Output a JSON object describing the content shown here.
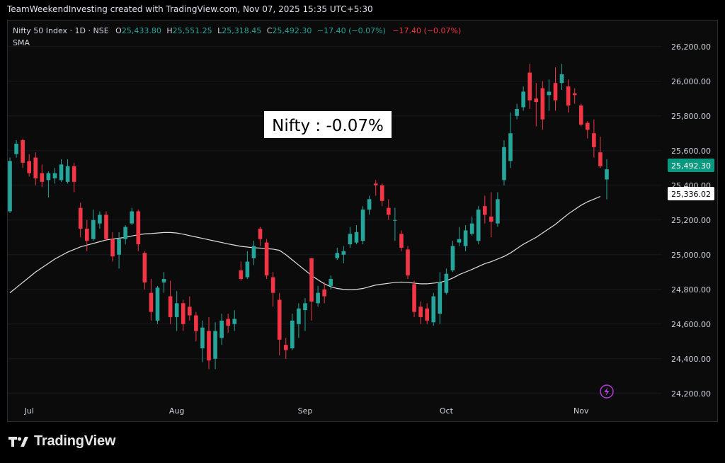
{
  "header": {
    "credit": "TeamWeekendInvesting created with TradingView.com, Nov 07, 2025 15:35 UTC+5:30"
  },
  "legend": {
    "symbol": "Nifty 50 Index · 1D · NSE",
    "o_label": "O",
    "o_value": "25,433.80",
    "h_label": "H",
    "h_value": "25,551.25",
    "l_label": "L",
    "l_value": "25,318.45",
    "c_label": "C",
    "c_value": "25,492.30",
    "change": "−17.40 (−0.07%)",
    "change2": "−17.40 (−0.07%)",
    "sma_label": "SMA"
  },
  "annotation": {
    "text": "Nifty : -0.07%"
  },
  "price_tags": {
    "last": "25,492.30",
    "sma": "25,336.02"
  },
  "brand": {
    "name": "TradingView"
  },
  "colors": {
    "up": "#26a69a",
    "down": "#f23645",
    "sma": "#e0e0e0",
    "text": "#d1d4dc",
    "bg": "#0b0b0b",
    "last_tag": "#089981",
    "flash": "#b23bd8"
  },
  "chart_data": {
    "type": "candlestick",
    "y_axis": {
      "range": [
        24150,
        26350
      ],
      "ticks": [
        24200,
        24400,
        24600,
        24800,
        25000,
        25200,
        25400,
        25600,
        25800,
        26000,
        26200
      ],
      "tick_labels": [
        "24,200.00",
        "24,400.00",
        "24,600.00",
        "24,800.00",
        "25,000.00",
        "25,200.00",
        "25,400.00",
        "25,600.00",
        "25,800.00",
        "26,000.00",
        "26,200.00"
      ]
    },
    "x_axis": {
      "labels": [
        {
          "label": "Jul",
          "index": 3
        },
        {
          "label": "Aug",
          "index": 26
        },
        {
          "label": "Sep",
          "index": 46
        },
        {
          "label": "Oct",
          "index": 68
        },
        {
          "label": "Nov",
          "index": 89
        }
      ]
    },
    "candles": [
      {
        "o": 25250,
        "h": 25560,
        "l": 25240,
        "c": 25540
      },
      {
        "o": 25580,
        "h": 25660,
        "l": 25560,
        "c": 25640
      },
      {
        "o": 25660,
        "h": 25670,
        "l": 25500,
        "c": 25530
      },
      {
        "o": 25540,
        "h": 25580,
        "l": 25450,
        "c": 25470
      },
      {
        "o": 25560,
        "h": 25590,
        "l": 25400,
        "c": 25440
      },
      {
        "o": 25470,
        "h": 25520,
        "l": 25390,
        "c": 25420
      },
      {
        "o": 25430,
        "h": 25480,
        "l": 25330,
        "c": 25470
      },
      {
        "o": 25440,
        "h": 25500,
        "l": 25410,
        "c": 25470
      },
      {
        "o": 25430,
        "h": 25550,
        "l": 25420,
        "c": 25520
      },
      {
        "o": 25420,
        "h": 25550,
        "l": 25410,
        "c": 25510
      },
      {
        "o": 25510,
        "h": 25530,
        "l": 25360,
        "c": 25420
      },
      {
        "o": 25270,
        "h": 25300,
        "l": 25100,
        "c": 25150
      },
      {
        "o": 25150,
        "h": 25200,
        "l": 25020,
        "c": 25080
      },
      {
        "o": 25090,
        "h": 25260,
        "l": 25080,
        "c": 25200
      },
      {
        "o": 25180,
        "h": 25250,
        "l": 25150,
        "c": 25230
      },
      {
        "o": 25230,
        "h": 25250,
        "l": 25080,
        "c": 25090
      },
      {
        "o": 25090,
        "h": 25130,
        "l": 24960,
        "c": 24990
      },
      {
        "o": 25000,
        "h": 25130,
        "l": 24920,
        "c": 25090
      },
      {
        "o": 25090,
        "h": 25170,
        "l": 25060,
        "c": 25160
      },
      {
        "o": 25180,
        "h": 25270,
        "l": 25170,
        "c": 25250
      },
      {
        "o": 25250,
        "h": 25260,
        "l": 25020,
        "c": 25060
      },
      {
        "o": 25010,
        "h": 25020,
        "l": 24800,
        "c": 24840
      },
      {
        "o": 24780,
        "h": 24860,
        "l": 24620,
        "c": 24670
      },
      {
        "o": 24620,
        "h": 24820,
        "l": 24600,
        "c": 24810
      },
      {
        "o": 24840,
        "h": 24900,
        "l": 24780,
        "c": 24860
      },
      {
        "o": 24760,
        "h": 24850,
        "l": 24600,
        "c": 24640
      },
      {
        "o": 24640,
        "h": 24790,
        "l": 24560,
        "c": 24720
      },
      {
        "o": 24720,
        "h": 24740,
        "l": 24560,
        "c": 24600
      },
      {
        "o": 24700,
        "h": 24760,
        "l": 24620,
        "c": 24650
      },
      {
        "o": 24650,
        "h": 24670,
        "l": 24500,
        "c": 24560
      },
      {
        "o": 24460,
        "h": 24620,
        "l": 24380,
        "c": 24580
      },
      {
        "o": 24560,
        "h": 24640,
        "l": 24340,
        "c": 24390
      },
      {
        "o": 24400,
        "h": 24610,
        "l": 24340,
        "c": 24560
      },
      {
        "o": 24520,
        "h": 24660,
        "l": 24480,
        "c": 24620
      },
      {
        "o": 24630,
        "h": 24660,
        "l": 24550,
        "c": 24590
      },
      {
        "o": 24600,
        "h": 24680,
        "l": 24560,
        "c": 24630
      },
      {
        "o": 24910,
        "h": 24960,
        "l": 24850,
        "c": 24860
      },
      {
        "o": 24870,
        "h": 25020,
        "l": 24860,
        "c": 24960
      },
      {
        "o": 24980,
        "h": 25080,
        "l": 24940,
        "c": 25050
      },
      {
        "o": 25150,
        "h": 25160,
        "l": 25050,
        "c": 25090
      },
      {
        "o": 25070,
        "h": 25090,
        "l": 24860,
        "c": 24880
      },
      {
        "o": 24870,
        "h": 24900,
        "l": 24700,
        "c": 24780
      },
      {
        "o": 24740,
        "h": 24780,
        "l": 24420,
        "c": 24510
      },
      {
        "o": 24480,
        "h": 24520,
        "l": 24400,
        "c": 24450
      },
      {
        "o": 24460,
        "h": 24660,
        "l": 24450,
        "c": 24620
      },
      {
        "o": 24600,
        "h": 24720,
        "l": 24520,
        "c": 24690
      },
      {
        "o": 24680,
        "h": 24750,
        "l": 24560,
        "c": 24720
      },
      {
        "o": 24980,
        "h": 24980,
        "l": 24620,
        "c": 24730
      },
      {
        "o": 24720,
        "h": 24820,
        "l": 24700,
        "c": 24780
      },
      {
        "o": 24800,
        "h": 24840,
        "l": 24720,
        "c": 24760
      },
      {
        "o": 24820,
        "h": 24880,
        "l": 24800,
        "c": 24860
      },
      {
        "o": 24980,
        "h": 25040,
        "l": 24970,
        "c": 25010
      },
      {
        "o": 25000,
        "h": 25050,
        "l": 24950,
        "c": 25020
      },
      {
        "o": 25060,
        "h": 25160,
        "l": 25040,
        "c": 25120
      },
      {
        "o": 25070,
        "h": 25170,
        "l": 25060,
        "c": 25130
      },
      {
        "o": 25080,
        "h": 25280,
        "l": 25060,
        "c": 25260
      },
      {
        "o": 25260,
        "h": 25340,
        "l": 25230,
        "c": 25320
      },
      {
        "o": 25410,
        "h": 25430,
        "l": 25340,
        "c": 25400
      },
      {
        "o": 25400,
        "h": 25410,
        "l": 25280,
        "c": 25310
      },
      {
        "o": 25270,
        "h": 25320,
        "l": 25200,
        "c": 25230
      },
      {
        "o": 25200,
        "h": 25270,
        "l": 25080,
        "c": 25200
      },
      {
        "o": 25120,
        "h": 25140,
        "l": 25020,
        "c": 25040
      },
      {
        "o": 25030,
        "h": 25050,
        "l": 24860,
        "c": 24880
      },
      {
        "o": 24830,
        "h": 24850,
        "l": 24640,
        "c": 24670
      },
      {
        "o": 24700,
        "h": 24730,
        "l": 24600,
        "c": 24640
      },
      {
        "o": 24690,
        "h": 24720,
        "l": 24600,
        "c": 24620
      },
      {
        "o": 24610,
        "h": 24780,
        "l": 24590,
        "c": 24760
      },
      {
        "o": 24660,
        "h": 24900,
        "l": 24600,
        "c": 24840
      },
      {
        "o": 24780,
        "h": 24920,
        "l": 24770,
        "c": 24890
      },
      {
        "o": 24910,
        "h": 25080,
        "l": 24900,
        "c": 25050
      },
      {
        "o": 25070,
        "h": 25160,
        "l": 25050,
        "c": 25090
      },
      {
        "o": 25050,
        "h": 25170,
        "l": 25020,
        "c": 25140
      },
      {
        "o": 25120,
        "h": 25220,
        "l": 25110,
        "c": 25180
      },
      {
        "o": 25080,
        "h": 25280,
        "l": 25060,
        "c": 25260
      },
      {
        "o": 25280,
        "h": 25340,
        "l": 25180,
        "c": 25230
      },
      {
        "o": 25220,
        "h": 25360,
        "l": 25100,
        "c": 25190
      },
      {
        "o": 25180,
        "h": 25360,
        "l": 25160,
        "c": 25320
      },
      {
        "o": 25430,
        "h": 25660,
        "l": 25400,
        "c": 25620
      },
      {
        "o": 25540,
        "h": 25820,
        "l": 25500,
        "c": 25700
      },
      {
        "o": 25800,
        "h": 25870,
        "l": 25780,
        "c": 25840
      },
      {
        "o": 25850,
        "h": 25970,
        "l": 25830,
        "c": 25940
      },
      {
        "o": 26050,
        "h": 26100,
        "l": 25840,
        "c": 25890
      },
      {
        "o": 25900,
        "h": 25990,
        "l": 25740,
        "c": 25880
      },
      {
        "o": 25960,
        "h": 26000,
        "l": 25720,
        "c": 25780
      },
      {
        "o": 25920,
        "h": 26010,
        "l": 25830,
        "c": 25940
      },
      {
        "o": 25990,
        "h": 26080,
        "l": 25830,
        "c": 25890
      },
      {
        "o": 25990,
        "h": 26100,
        "l": 25950,
        "c": 26040
      },
      {
        "o": 25970,
        "h": 26010,
        "l": 25820,
        "c": 25860
      },
      {
        "o": 25930,
        "h": 25960,
        "l": 25870,
        "c": 25920
      },
      {
        "o": 25860,
        "h": 25870,
        "l": 25740,
        "c": 25750
      },
      {
        "o": 25760,
        "h": 25770,
        "l": 25670,
        "c": 25720
      },
      {
        "o": 25700,
        "h": 25780,
        "l": 25560,
        "c": 25620
      },
      {
        "o": 25590,
        "h": 25680,
        "l": 25500,
        "c": 25510
      },
      {
        "o": 25433.8,
        "h": 25551.25,
        "l": 25318.45,
        "c": 25492.3
      }
    ],
    "sma": [
      24780,
      24810,
      24840,
      24870,
      24900,
      24925,
      24950,
      24975,
      24995,
      25015,
      25030,
      25045,
      25055,
      25065,
      25075,
      25085,
      25090,
      25095,
      25100,
      25108,
      25115,
      25120,
      25122,
      25125,
      25128,
      25128,
      25125,
      25118,
      25110,
      25102,
      25094,
      25086,
      25078,
      25070,
      25062,
      25055,
      25048,
      25044,
      25040,
      25038,
      25035,
      25032,
      25025,
      25000,
      24970,
      24940,
      24910,
      24880,
      24855,
      24832,
      24815,
      24805,
      24800,
      24798,
      24800,
      24805,
      24815,
      24825,
      24830,
      24835,
      24840,
      24842,
      24840,
      24836,
      24832,
      24832,
      24836,
      24840,
      24850,
      24865,
      24885,
      24900,
      24915,
      24932,
      24948,
      24960,
      24975,
      24990,
      25010,
      25035,
      25060,
      25080,
      25100,
      25125,
      25150,
      25175,
      25205,
      25235,
      25260,
      25285,
      25305,
      25320,
      25336.02
    ]
  }
}
